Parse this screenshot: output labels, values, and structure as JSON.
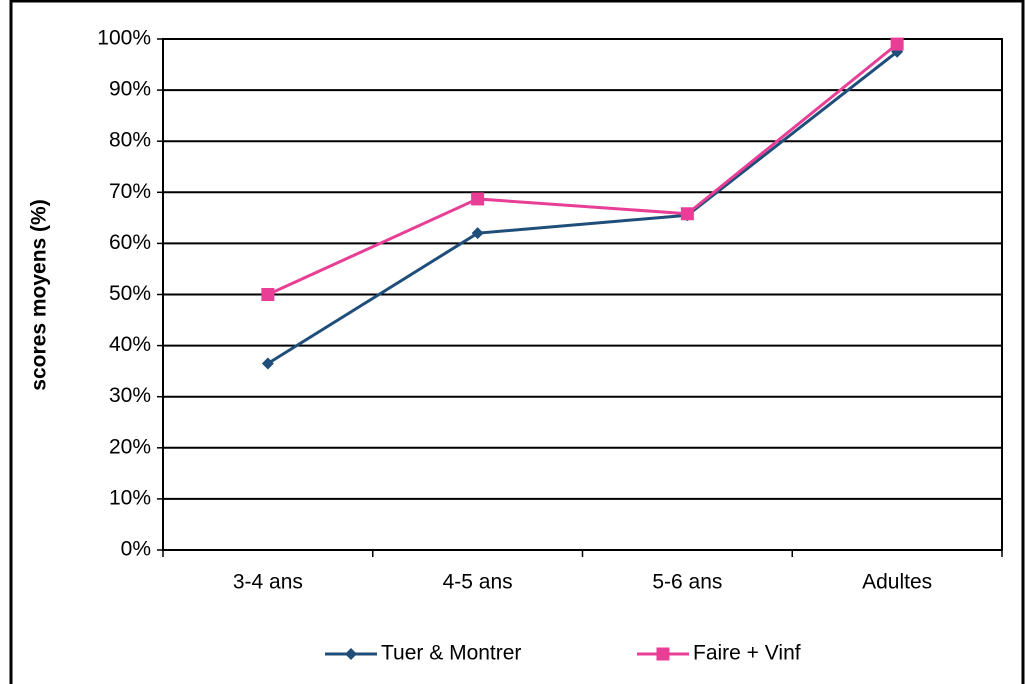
{
  "chart_data": {
    "type": "line",
    "y_label": "scores moyens (%)",
    "categories": [
      "3-4 ans",
      "4-5 ans",
      "5-6 ans",
      "Adultes"
    ],
    "series": [
      {
        "name": "Tuer & Montrer",
        "color": "#1f4e7a",
        "marker": "diamond",
        "values": [
          36.5,
          62,
          65.5,
          97.5
        ]
      },
      {
        "name": "Faire + Vinf",
        "color": "#e83e96",
        "marker": "square",
        "values": [
          50,
          68.7,
          65.8,
          99
        ]
      }
    ],
    "ylim": [
      0,
      100
    ],
    "yticks": [
      {
        "value": 0,
        "label": "0%"
      },
      {
        "value": 10,
        "label": "10%"
      },
      {
        "value": 20,
        "label": "20%"
      },
      {
        "value": 30,
        "label": "30%"
      },
      {
        "value": 40,
        "label": "40%"
      },
      {
        "value": 50,
        "label": "50%"
      },
      {
        "value": 60,
        "label": "60%"
      },
      {
        "value": 70,
        "label": "70%"
      },
      {
        "value": 80,
        "label": "80%"
      },
      {
        "value": 90,
        "label": "90%"
      },
      {
        "value": 100,
        "label": "100%"
      }
    ],
    "grid": true,
    "legend": "bottom"
  }
}
